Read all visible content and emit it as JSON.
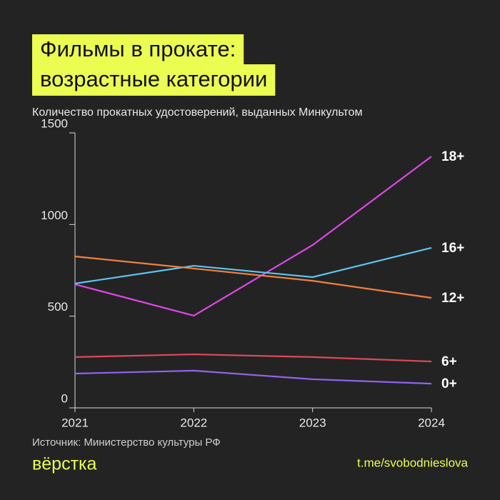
{
  "chart_data": {
    "type": "line",
    "title": [
      "Фильмы в прокате:",
      "возрастные категории"
    ],
    "subtitle": "Количество прокатных удостоверений, выданных Минкультом",
    "x": [
      2021,
      2022,
      2023,
      2024
    ],
    "xlim": [
      2021,
      2024
    ],
    "xticks": [
      2021,
      2022,
      2023,
      2024
    ],
    "ylim": [
      0,
      1500
    ],
    "yticks": [
      0,
      500,
      1000,
      1500
    ],
    "grid": false,
    "series": [
      {
        "name": "18+",
        "color": "#e046ea",
        "values": [
          674,
          503,
          888,
          1371
        ]
      },
      {
        "name": "16+",
        "color": "#5cc6ee",
        "values": [
          678,
          775,
          713,
          873
        ]
      },
      {
        "name": "12+",
        "color": "#f0803e",
        "values": [
          826,
          760,
          693,
          600
        ]
      },
      {
        "name": "6+",
        "color": "#e0485a",
        "values": [
          277,
          292,
          277,
          253
        ]
      },
      {
        "name": "0+",
        "color": "#9463f2",
        "values": [
          187,
          203,
          156,
          132
        ]
      }
    ],
    "source": "Источник: Министерство культуры РФ",
    "logo": "вёрстка",
    "link": "t.me/svobodnieslova"
  }
}
